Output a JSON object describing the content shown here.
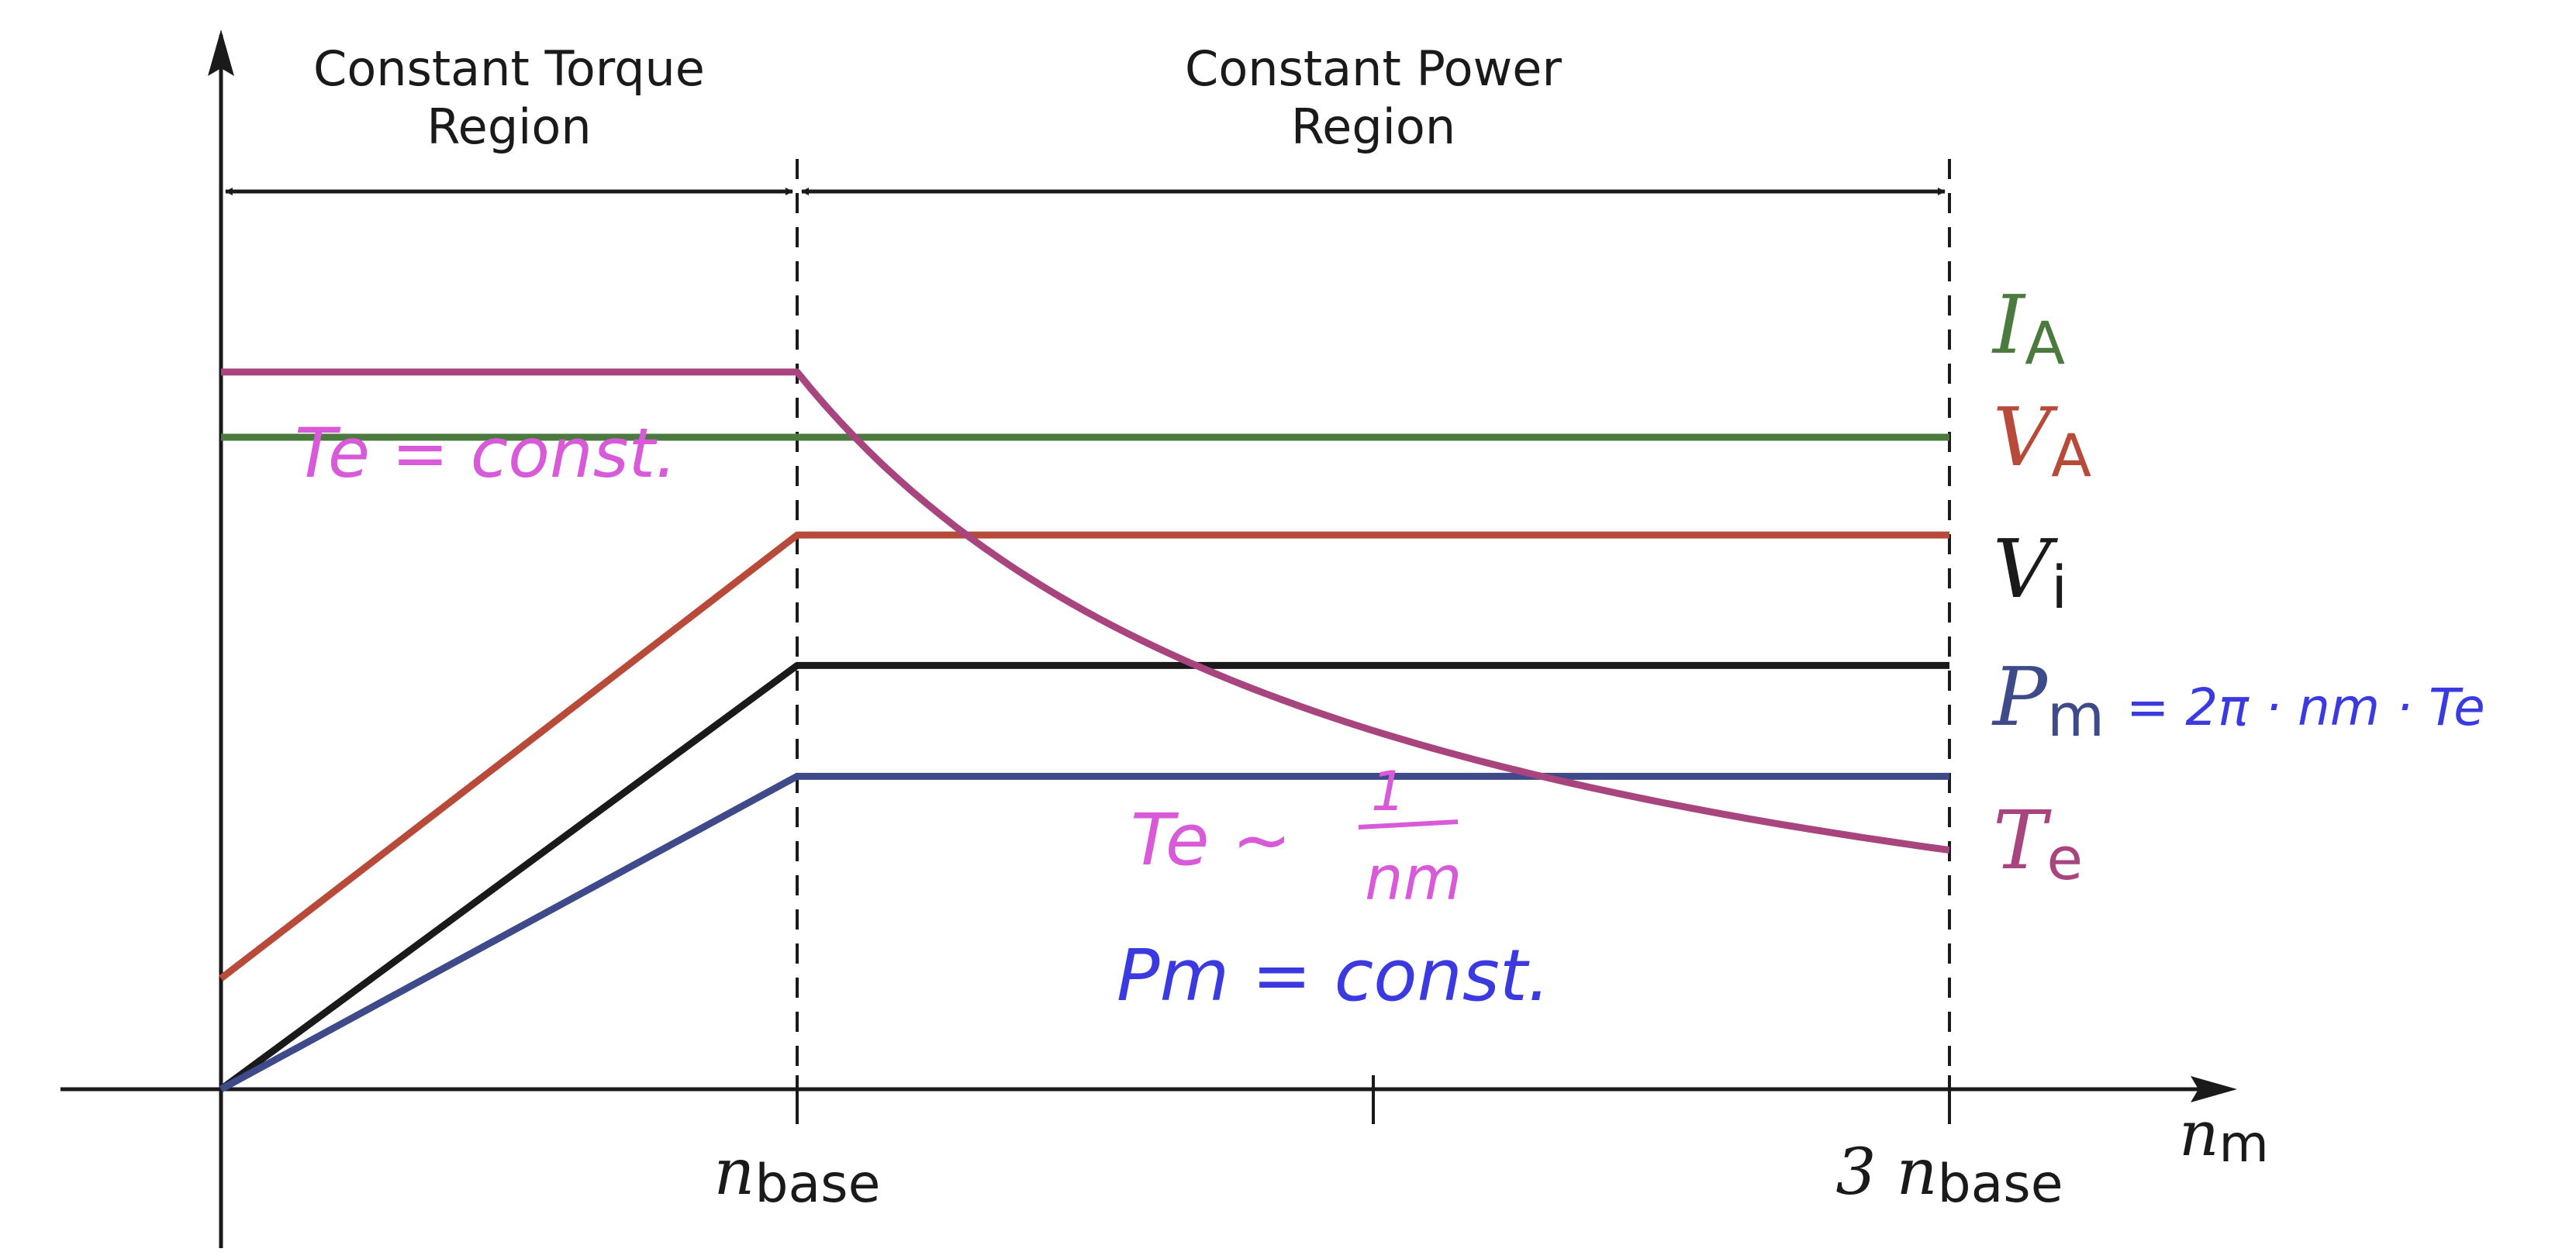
{
  "chart_data": {
    "type": "line",
    "x_axis": {
      "range": [
        0,
        3.5
      ],
      "ticks": [
        {
          "value": 1,
          "label_main": "n",
          "label_sub": "base"
        },
        {
          "value": 2,
          "label_main": "",
          "label_sub": ""
        },
        {
          "value": 3,
          "label_main": "3 n",
          "label_sub": "base"
        }
      ],
      "label_main": "n",
      "label_sub": "m"
    },
    "y_range": [
      0,
      1.3
    ],
    "regions": [
      {
        "line1": "Constant Torque",
        "line2": "Region",
        "x_from": 0,
        "x_to": 1
      },
      {
        "line1": "Constant Power",
        "line2": "Region",
        "x_from": 1,
        "x_to": 3
      }
    ],
    "series": [
      {
        "key": "IA",
        "label_main": "I",
        "label_sub": "A",
        "color": "#4a7a3d",
        "points": [
          [
            0,
            1.0
          ],
          [
            3,
            1.0
          ]
        ]
      },
      {
        "key": "VA",
        "label_main": "V",
        "label_sub": "A",
        "color": "#b84a3a",
        "points": [
          [
            0,
            0.17
          ],
          [
            1,
            0.85
          ],
          [
            3,
            0.85
          ]
        ]
      },
      {
        "key": "Vi",
        "label_main": "V",
        "label_sub": "i",
        "color": "#1a1a1a",
        "points": [
          [
            0,
            0.0
          ],
          [
            1,
            0.65
          ],
          [
            3,
            0.65
          ]
        ]
      },
      {
        "key": "Pm",
        "label_main": "P",
        "label_sub": "m",
        "color": "#3f4a8a",
        "points": [
          [
            0,
            0.0
          ],
          [
            1,
            0.48
          ],
          [
            3,
            0.48
          ]
        ]
      },
      {
        "key": "Te",
        "label_main": "T",
        "label_sub": "e",
        "color": "#a8457e",
        "curve": {
          "flat_value": 1.1,
          "flat_until": 1,
          "hyperbolic_to": 3
        }
      }
    ],
    "annotations": {
      "te_const": "Te = const.",
      "te_prop_left": "Te ~",
      "te_prop_num": "1",
      "te_prop_den": "nm",
      "pm_const": "Pm = const.",
      "pm_formula": "= 2π · nm · Te"
    },
    "colors": {
      "axis": "#1a1a1a",
      "handwriting_magenta": "#d85ad8",
      "handwriting_blue": "#3a3ae0"
    }
  }
}
